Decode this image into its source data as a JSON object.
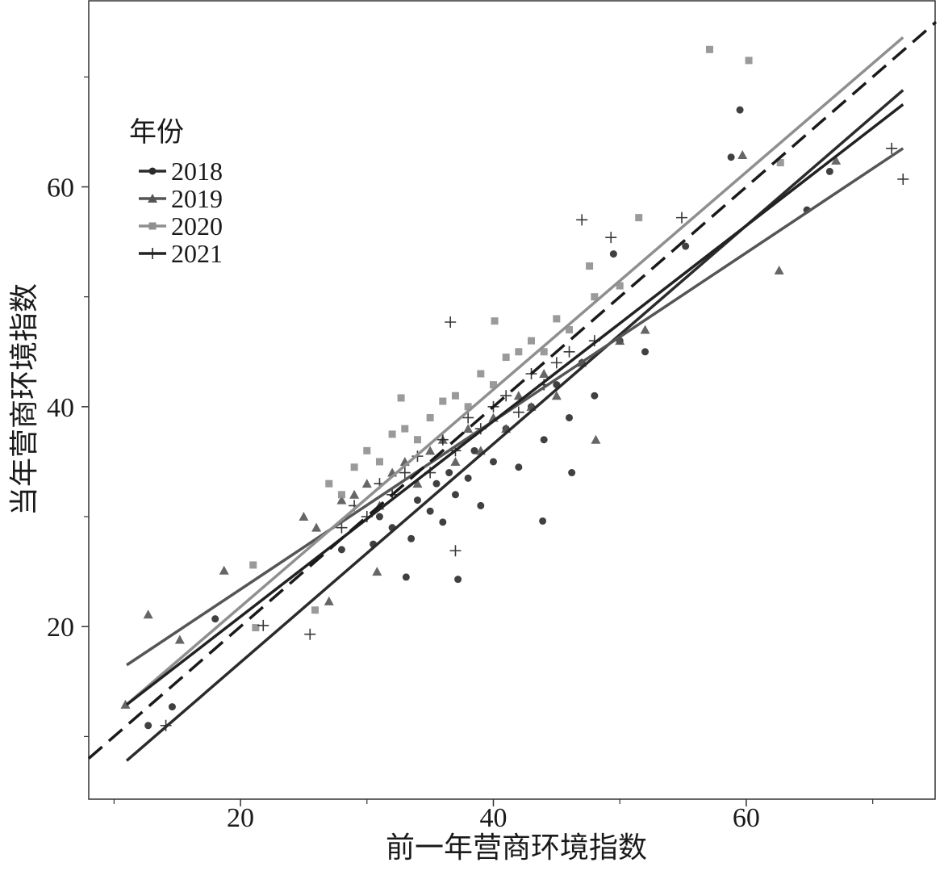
{
  "chart_data": {
    "type": "scatter",
    "x_label": "前一年营商环境指数",
    "y_label": "当年营商环境指数",
    "legend_title": "年份",
    "legend": "upper left",
    "xlim": [
      8,
      75
    ],
    "ylim": [
      4.3,
      77
    ],
    "xticks": [
      20,
      40,
      60
    ],
    "yticks": [
      20,
      40,
      60
    ],
    "xminorticks": [
      10,
      30,
      50,
      70
    ],
    "yminorticks": [
      10,
      30,
      50,
      70
    ],
    "reference_line": {
      "x": [
        8,
        75
      ],
      "y": [
        8,
        75
      ],
      "color": "#1a1a1a",
      "dashed": true
    },
    "series": [
      {
        "name": "2018",
        "color": "#2b2b2b",
        "marker": "circle",
        "x": [
          12.7,
          14.6,
          18.0,
          33.1,
          37.2,
          43.9,
          46.2,
          49.5,
          55.2,
          58.8,
          59.5,
          64.8,
          66.6,
          30.5,
          32,
          33.5,
          34,
          35,
          35.5,
          36,
          36.5,
          37,
          38,
          38.5,
          39,
          40,
          41,
          42,
          43,
          44,
          45,
          46,
          47,
          48,
          50,
          52,
          28,
          31
        ],
        "values": [
          11.0,
          12.7,
          20.7,
          24.5,
          24.3,
          29.6,
          34.0,
          53.9,
          54.6,
          62.7,
          67.0,
          57.9,
          61.4,
          27.5,
          29,
          28,
          31.5,
          30.5,
          33,
          29.5,
          34,
          32,
          33.5,
          36,
          31,
          35,
          38,
          34.5,
          40,
          37,
          42,
          39,
          44,
          41,
          46,
          45,
          27,
          30
        ],
        "fit": {
          "x": [
            11.0,
            72.4
          ],
          "y": [
            7.8,
            68.8
          ]
        }
      },
      {
        "name": "2019",
        "color": "#555555",
        "marker": "triangle",
        "x": [
          12.7,
          10.9,
          18.7,
          59.7,
          62.6,
          48.1,
          30.8,
          27.0,
          67.1,
          15.2,
          25,
          26,
          28,
          29,
          30,
          31,
          32,
          33,
          34,
          35,
          36,
          37,
          38,
          39,
          40,
          41,
          42,
          43,
          44,
          45,
          47,
          50,
          52
        ],
        "values": [
          21.1,
          12.9,
          25.1,
          62.9,
          52.4,
          37.0,
          25.0,
          22.3,
          62.4,
          18.8,
          30,
          29,
          31.5,
          32,
          33,
          31,
          34,
          35,
          33,
          36,
          37,
          35,
          38,
          36,
          39,
          38,
          41,
          40,
          43,
          41,
          44,
          46,
          47
        ],
        "fit": {
          "x": [
            11.0,
            72.4
          ],
          "y": [
            16.5,
            63.5
          ]
        }
      },
      {
        "name": "2020",
        "color": "#8f8f8f",
        "marker": "square",
        "x": [
          57.1,
          60.2,
          21.0,
          21.2,
          25.9,
          51.5,
          47.6,
          40.1,
          32.7,
          62.7,
          27,
          28,
          29,
          30,
          31,
          32,
          33,
          34,
          35,
          36,
          37,
          38,
          39,
          40,
          41,
          42,
          43,
          44,
          45,
          46,
          48,
          50
        ],
        "values": [
          72.5,
          71.5,
          25.6,
          19.9,
          21.5,
          57.2,
          52.8,
          47.8,
          40.8,
          62.2,
          33,
          32,
          34.5,
          36,
          35,
          37.5,
          38,
          37,
          39,
          40.5,
          41,
          40,
          43,
          42,
          44.5,
          45,
          46,
          45,
          48,
          47,
          50,
          51
        ],
        "fit": {
          "x": [
            11.0,
            72.4
          ],
          "y": [
            12.9,
            73.6
          ]
        }
      },
      {
        "name": "2021",
        "color": "#222222",
        "marker": "plus",
        "x": [
          14.1,
          25.5,
          71.5,
          72.4,
          47.0,
          54.9,
          36.6,
          37.0,
          49.3,
          21.8,
          28,
          29,
          30,
          31,
          32,
          33,
          34,
          35,
          36,
          37,
          38,
          39,
          40,
          41,
          42,
          43,
          44,
          45,
          46,
          48
        ],
        "values": [
          11.0,
          19.3,
          63.5,
          60.7,
          57.0,
          57.2,
          47.7,
          26.9,
          55.4,
          20.1,
          29,
          31,
          30,
          33,
          32,
          34,
          35.5,
          34,
          37,
          36,
          39,
          38,
          40,
          41,
          39.5,
          43,
          42,
          44,
          45,
          46
        ],
        "fit": {
          "x": [
            11.0,
            72.4
          ],
          "y": [
            12.9,
            67.5
          ]
        }
      }
    ]
  }
}
